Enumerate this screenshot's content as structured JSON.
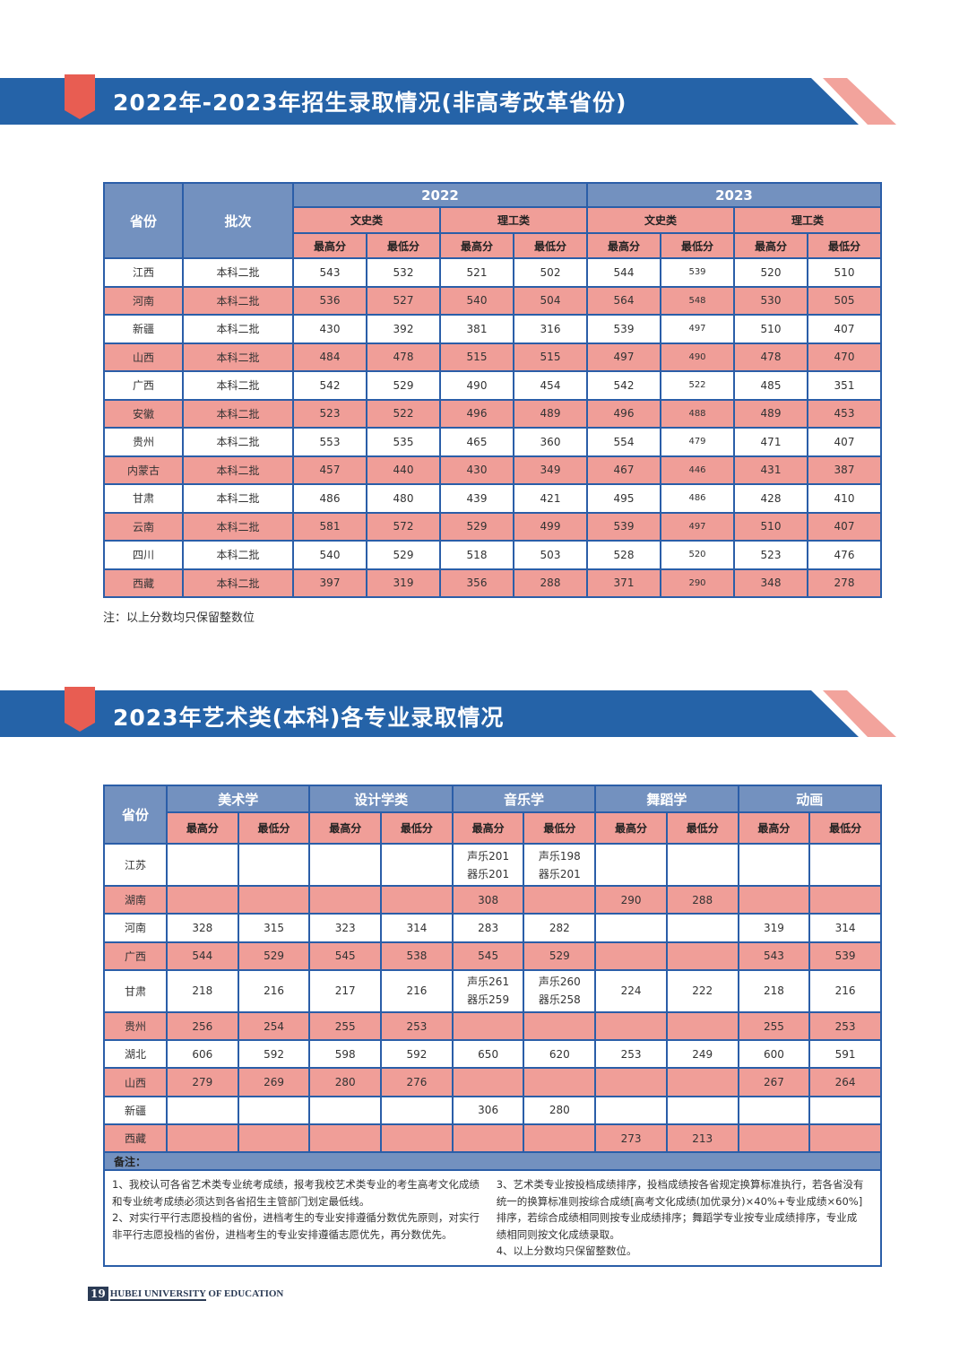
{
  "colors": {
    "banner_blue": "#2563a8",
    "tab_red": "#e85d52",
    "stripe_pink": "#f2a39c",
    "header_blue": "#7391bf",
    "row_pink": "#f09e98",
    "border": "#2b5ea8"
  },
  "section1": {
    "title": "2022年-2023年招生录取情况(非高考改革省份)",
    "headers": {
      "province": "省份",
      "batch": "批次",
      "years": [
        "2022",
        "2023"
      ],
      "categories": [
        "文史类",
        "理工类",
        "文史类",
        "理工类"
      ],
      "score_labels": [
        "最高分",
        "最低分",
        "最高分",
        "最低分",
        "最高分",
        "最低分",
        "最高分",
        "最低分"
      ]
    },
    "rows": [
      {
        "province": "江西",
        "batch": "本科二批",
        "scores": [
          "543",
          "532",
          "521",
          "502",
          "544",
          "539",
          "520",
          "510"
        ]
      },
      {
        "province": "河南",
        "batch": "本科二批",
        "scores": [
          "536",
          "527",
          "540",
          "504",
          "564",
          "548",
          "530",
          "505"
        ]
      },
      {
        "province": "新疆",
        "batch": "本科二批",
        "scores": [
          "430",
          "392",
          "381",
          "316",
          "539",
          "497",
          "510",
          "407"
        ]
      },
      {
        "province": "山西",
        "batch": "本科二批",
        "scores": [
          "484",
          "478",
          "515",
          "515",
          "497",
          "490",
          "478",
          "470"
        ]
      },
      {
        "province": "广西",
        "batch": "本科二批",
        "scores": [
          "542",
          "529",
          "490",
          "454",
          "542",
          "522",
          "485",
          "351"
        ]
      },
      {
        "province": "安徽",
        "batch": "本科二批",
        "scores": [
          "523",
          "522",
          "496",
          "489",
          "496",
          "488",
          "489",
          "453"
        ]
      },
      {
        "province": "贵州",
        "batch": "本科二批",
        "scores": [
          "553",
          "535",
          "465",
          "360",
          "554",
          "479",
          "471",
          "407"
        ]
      },
      {
        "province": "内蒙古",
        "batch": "本科二批",
        "scores": [
          "457",
          "440",
          "430",
          "349",
          "467",
          "446",
          "431",
          "387"
        ]
      },
      {
        "province": "甘肃",
        "batch": "本科二批",
        "scores": [
          "486",
          "480",
          "439",
          "421",
          "495",
          "486",
          "428",
          "410"
        ]
      },
      {
        "province": "云南",
        "batch": "本科二批",
        "scores": [
          "581",
          "572",
          "529",
          "499",
          "539",
          "497",
          "510",
          "407"
        ]
      },
      {
        "province": "四川",
        "batch": "本科二批",
        "scores": [
          "540",
          "529",
          "518",
          "503",
          "528",
          "520",
          "523",
          "476"
        ]
      },
      {
        "province": "西藏",
        "batch": "本科二批",
        "scores": [
          "397",
          "319",
          "356",
          "288",
          "371",
          "290",
          "348",
          "278"
        ]
      }
    ],
    "note": "注：以上分数均只保留整数位"
  },
  "section2": {
    "title": "2023年艺术类(本科)各专业录取情况",
    "headers": {
      "province": "省份",
      "majors": [
        "美术学",
        "设计学类",
        "音乐学",
        "舞蹈学",
        "动画"
      ],
      "score_labels": [
        "最高分",
        "最低分",
        "最高分",
        "最低分",
        "最高分",
        "最低分",
        "最高分",
        "最低分",
        "最高分",
        "最低分"
      ]
    },
    "rows": [
      {
        "province": "江苏",
        "scores": [
          "",
          "",
          "",
          "",
          "声乐201\n器乐201",
          "声乐198\n器乐201",
          "",
          "",
          "",
          ""
        ]
      },
      {
        "province": "湖南",
        "scores": [
          "",
          "",
          "",
          "",
          "308",
          "",
          "290",
          "288",
          "",
          ""
        ]
      },
      {
        "province": "河南",
        "scores": [
          "328",
          "315",
          "323",
          "314",
          "283",
          "282",
          "",
          "",
          "319",
          "314"
        ]
      },
      {
        "province": "广西",
        "scores": [
          "544",
          "529",
          "545",
          "538",
          "545",
          "529",
          "",
          "",
          "543",
          "539"
        ]
      },
      {
        "province": "甘肃",
        "scores": [
          "218",
          "216",
          "217",
          "216",
          "声乐261\n器乐259",
          "声乐260\n器乐258",
          "224",
          "222",
          "218",
          "216"
        ]
      },
      {
        "province": "贵州",
        "scores": [
          "256",
          "254",
          "255",
          "253",
          "",
          "",
          "",
          "",
          "255",
          "253"
        ]
      },
      {
        "province": "湖北",
        "scores": [
          "606",
          "592",
          "598",
          "592",
          "650",
          "620",
          "253",
          "249",
          "600",
          "591"
        ]
      },
      {
        "province": "山西",
        "scores": [
          "279",
          "269",
          "280",
          "276",
          "",
          "",
          "",
          "",
          "267",
          "264"
        ]
      },
      {
        "province": "新疆",
        "scores": [
          "",
          "",
          "",
          "",
          "306",
          "280",
          "",
          "",
          "",
          ""
        ]
      },
      {
        "province": "西藏",
        "scores": [
          "",
          "",
          "",
          "",
          "",
          "",
          "273",
          "213",
          "",
          ""
        ]
      }
    ],
    "notes_title": "备注：",
    "notes_left": [
      "1、我校认可各省艺术类专业统考成绩，报考我校艺术类专业的考生高考文化成绩和专业统考成绩必须达到各省招生主管部门划定最低线。",
      "2、对实行平行志愿投档的省份，进档考生的专业安排遵循分数优先原则，对实行非平行志愿投档的省份，进档考生的专业安排遵循志愿优先，再分数优先。"
    ],
    "notes_right": [
      "3、艺术类专业按投档成绩排序，投档成绩按各省规定换算标准执行，若各省没有统一的换算标准则按综合成绩[高考文化成绩(加优录分)×40%+专业成绩×60%]排序，若综合成绩相同则按专业成绩排序；舞蹈学专业按专业成绩排序，专业成绩相同则按文化成绩录取。",
      "4、以上分数均只保留整数位。"
    ]
  },
  "footer": {
    "page_number": "19",
    "university_underlined": "HUBEI UNIVERSITY",
    "university_rest": " OF EDUCATION"
  }
}
